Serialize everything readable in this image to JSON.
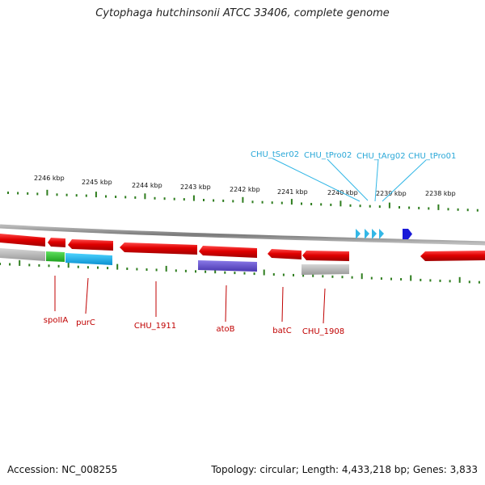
{
  "title": "Cytophaga hutchinsonii ATCC 33406, complete genome",
  "footer": {
    "accession": "Accession: NC_008255",
    "stats": "Topology: circular; Length: 4,433,218 bp; Genes: 3,833"
  },
  "colors": {
    "backbone": "#8a8a8a",
    "tick": "#2e7d1e",
    "cds": "#e00000",
    "gene_label": "#c00000",
    "trna": "#33b7e6",
    "trna_label": "#2aa8d8",
    "marker": "#1a1ad8"
  },
  "kbp_scale": [
    {
      "label": "2246 kbp"
    },
    {
      "label": "2245 kbp"
    },
    {
      "label": "2244 kbp"
    },
    {
      "label": "2243 kbp"
    },
    {
      "label": "2242 kbp"
    },
    {
      "label": "2241 kbp"
    },
    {
      "label": "2240 kbp"
    },
    {
      "label": "2239 kbp"
    },
    {
      "label": "2238 kbp"
    }
  ],
  "gene_labels": [
    {
      "name": "spoIIA"
    },
    {
      "name": "purC"
    },
    {
      "name": "CHU_1911"
    },
    {
      "name": "atoB"
    },
    {
      "name": "batC"
    },
    {
      "name": "CHU_1908"
    }
  ],
  "trna_labels": [
    {
      "name": "CHU_tSer02"
    },
    {
      "name": "CHU_tPro02"
    },
    {
      "name": "CHU_tArg02"
    },
    {
      "name": "CHU_tPro01"
    }
  ]
}
